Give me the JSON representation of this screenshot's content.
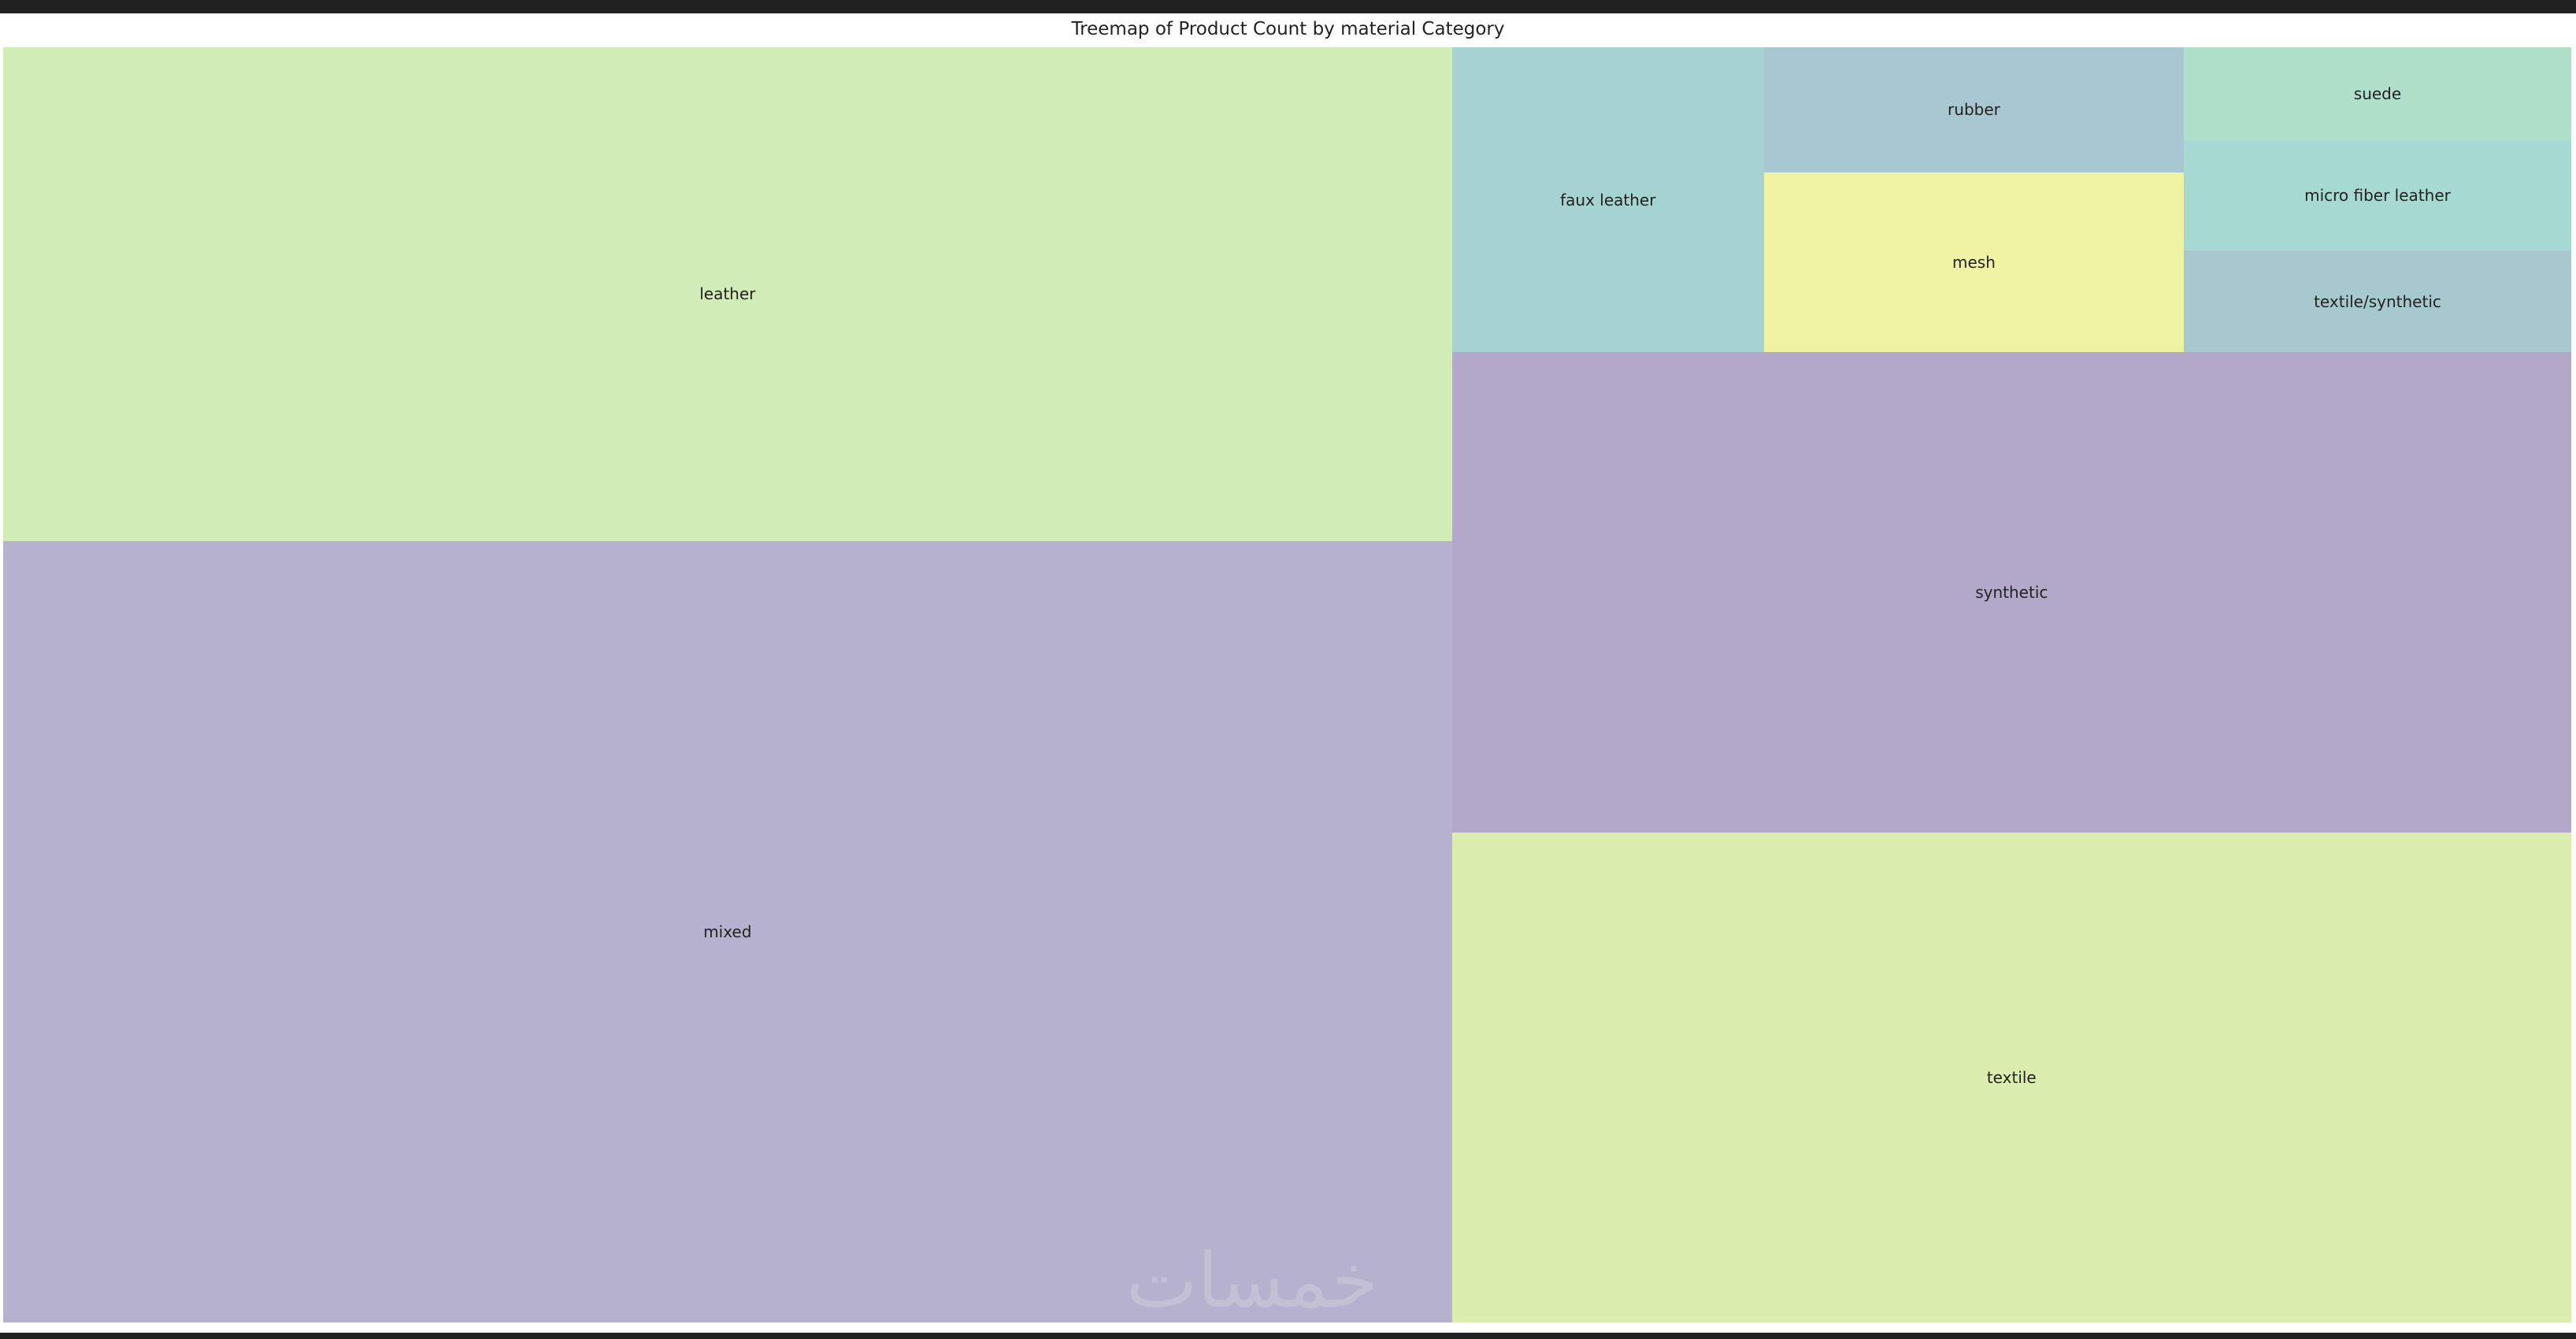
{
  "chart_data": {
    "type": "treemap",
    "title": "Treemap of Product Count by material Category",
    "value_unit": "approximate share of product count (%), estimated from tile areas",
    "categories": [
      "mixed",
      "leather",
      "textile",
      "synthetic",
      "faux leather",
      "mesh",
      "rubber",
      "textile/synthetic",
      "micro fiber leather",
      "suede"
    ],
    "values": [
      34.5,
      21.8,
      16.7,
      16.4,
      2.9,
      2.3,
      1.6,
      1.2,
      1.3,
      1.1
    ],
    "colors": [
      "#b5b1ce",
      "#d1ecb7",
      "#dceeaf",
      "#b3a8c9",
      "#a5d3d2",
      "#f0f2a3",
      "#a9c7d0",
      "#a8c8cf",
      "#a7d9d3",
      "#b0e0ca"
    ]
  },
  "watermark": "خمسات"
}
